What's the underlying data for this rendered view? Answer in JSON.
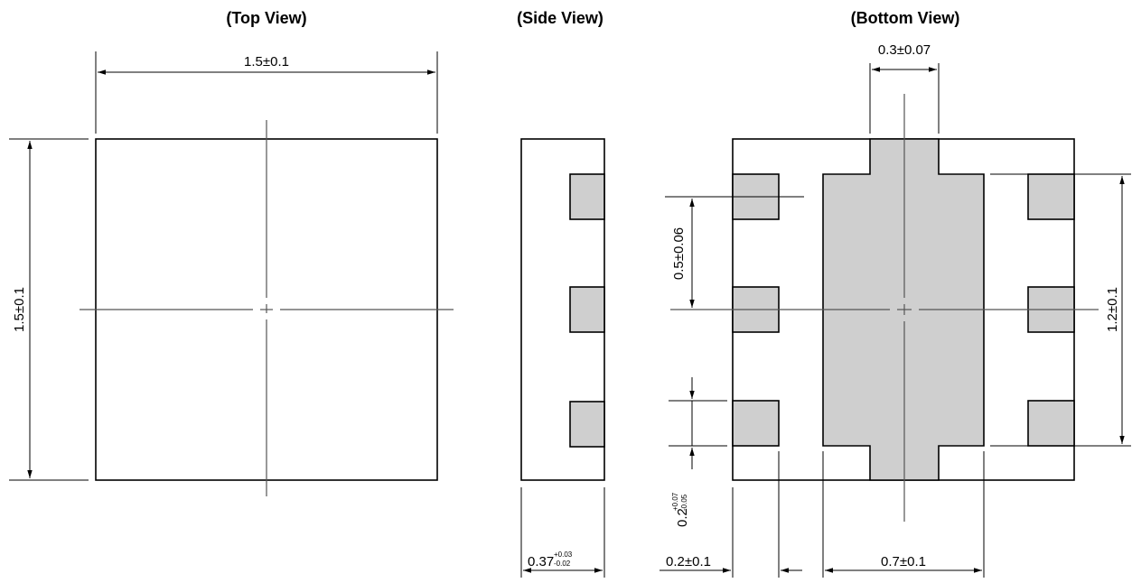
{
  "views": {
    "top": {
      "title": "(Top View)",
      "width_dim": "1.5±0.1",
      "height_dim": "1.5±0.1"
    },
    "side": {
      "title": "(Side View)",
      "thickness_base": "0.37",
      "thickness_tol_upper": "+0.03",
      "thickness_tol_lower": "-0.02"
    },
    "bottom": {
      "title": "(Bottom View)",
      "tab_width_dim": "0.3±0.07",
      "pitch_dim": "0.5±0.06",
      "pad_length_base": "0.2",
      "pad_length_tol_upper": "+0.07",
      "pad_length_tol_lower": "-0.05",
      "pad_width_dim": "0.2±0.1",
      "center_pad_dim": "0.7±0.1",
      "pad_span_dim": "1.2±0.1"
    }
  },
  "colors": {
    "pad_fill": "#cfcfcf",
    "line": "#000000"
  }
}
